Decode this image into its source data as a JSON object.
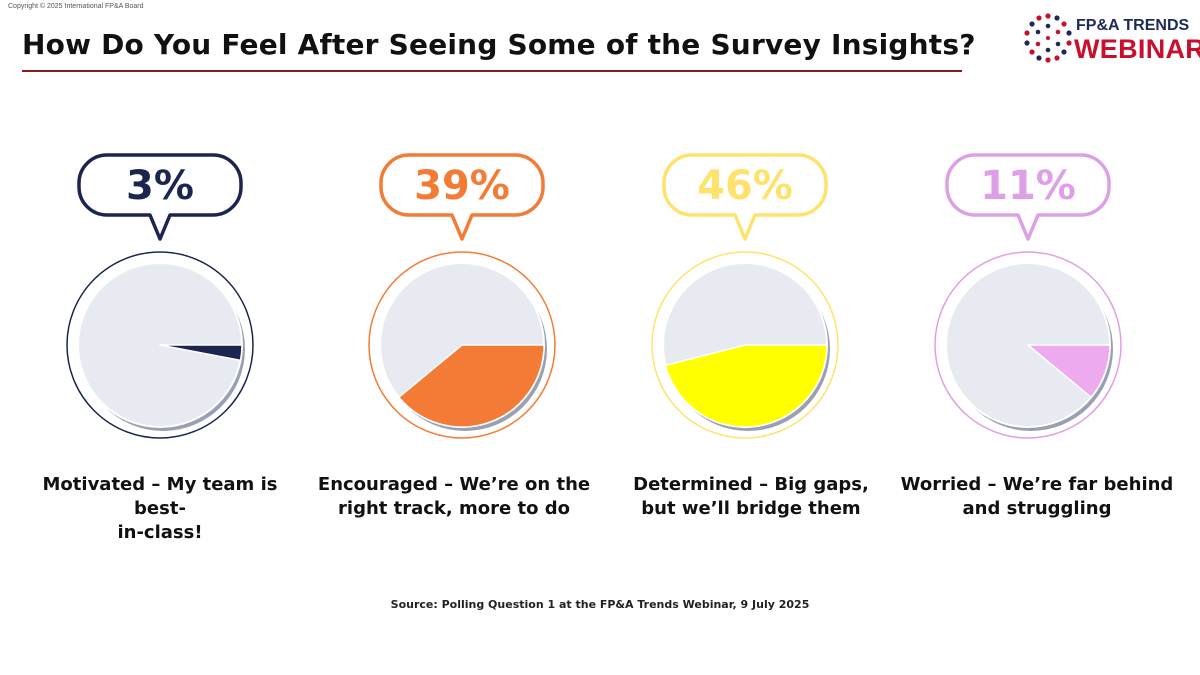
{
  "copyright": "Copyright © 2025 International FP&A Board",
  "title": "How Do You Feel After Seeing Some of the Survey Insights?",
  "logo": {
    "line1": "FP&A TRENDS",
    "line2": "WEBINAR"
  },
  "source": "Source: Polling Question 1 at the FP&A Trends Webinar, 9 July 2025",
  "colors": {
    "pie_background": "#e8eaf2",
    "title_rule": "#8b1a1a",
    "logo_navy": "#1d2a57",
    "logo_red": "#c8102e"
  },
  "chart_data": {
    "type": "pie",
    "title": "How Do You Feel After Seeing Some of the Survey Insights?",
    "categories": [
      "Motivated – My team is best-in-class!",
      "Encouraged – We’re on the right track, more to do",
      "Determined – Big gaps, but we’ll bridge them",
      "Worried – We’re far behind and struggling"
    ],
    "values": [
      3,
      39,
      46,
      11
    ],
    "value_labels": [
      "3%",
      "39%",
      "46%",
      "11%"
    ],
    "labels": [
      [
        "Motivated – My team is best-",
        "in-class!"
      ],
      [
        "Encouraged – We’re on the",
        "right track, more to do"
      ],
      [
        "Determined – Big gaps,",
        "but we’ll bridge them"
      ],
      [
        "Worried – We’re far behind",
        "and struggling"
      ]
    ],
    "colors": [
      "#1b2550",
      "#f47b35",
      "#ffff00",
      "#eeaaee"
    ],
    "bubble_colors": [
      "#1b2550",
      "#f47b35",
      "#ffe26b",
      "#dda0e6"
    ],
    "unit": "%"
  }
}
